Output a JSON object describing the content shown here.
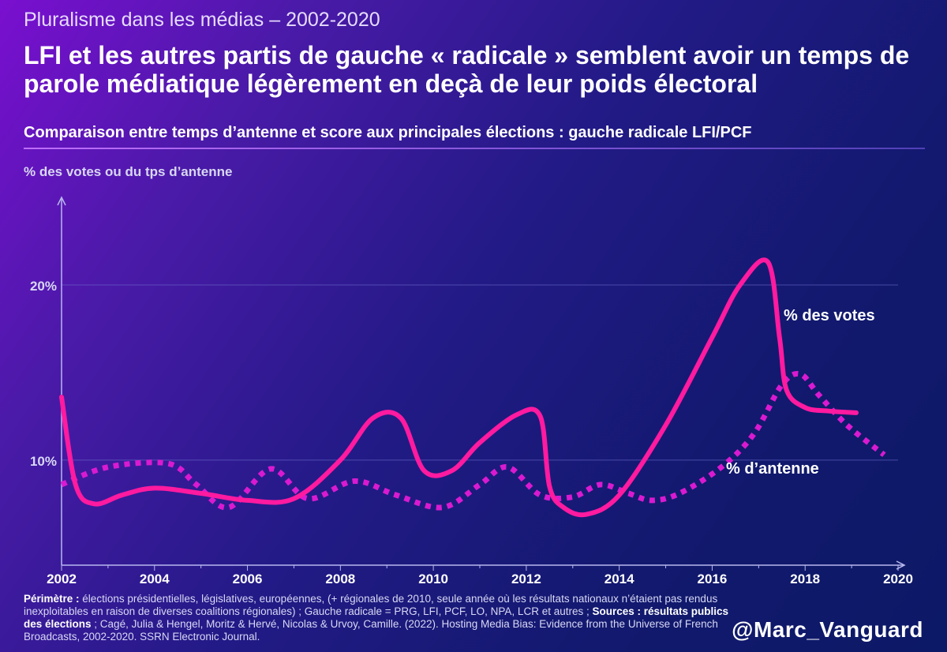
{
  "header": {
    "kicker": "Pluralisme dans les médias – 2002-2020",
    "headline": "LFI et les autres partis de gauche « radicale » semblent avoir un temps de parole médiatique légèrement en deçà de leur poids électoral",
    "subtitle": "Comparaison entre temps d’antenne et score aux principales élections : gauche radicale LFI/PCF"
  },
  "chart_data": {
    "type": "line",
    "ylabel": "% des votes ou du tps d’antenne",
    "xlim": [
      2002,
      2020
    ],
    "ylim": [
      4,
      25
    ],
    "grid": true,
    "x_ticks": [
      2002,
      2004,
      2006,
      2008,
      2010,
      2012,
      2014,
      2016,
      2018,
      2020
    ],
    "x_tick_labels": [
      "2002",
      "2004",
      "2006",
      "2008",
      "2010",
      "2012",
      "2014",
      "2016",
      "2018",
      "2020"
    ],
    "y_ticks": [
      10,
      20
    ],
    "y_tick_labels": [
      "10%",
      "20%"
    ],
    "series": [
      {
        "name": "% des votes",
        "label": "% des votes",
        "style": "solid",
        "color": "#ff1aa0",
        "points": [
          [
            2002.0,
            13.6
          ],
          [
            2002.3,
            8.6
          ],
          [
            2002.7,
            7.5
          ],
          [
            2003.3,
            8.0
          ],
          [
            2004.0,
            8.4
          ],
          [
            2005.0,
            8.1
          ],
          [
            2006.0,
            7.7
          ],
          [
            2007.0,
            7.8
          ],
          [
            2008.0,
            10.0
          ],
          [
            2008.7,
            12.4
          ],
          [
            2009.3,
            12.4
          ],
          [
            2009.8,
            9.4
          ],
          [
            2010.4,
            9.4
          ],
          [
            2011.0,
            11.0
          ],
          [
            2011.8,
            12.6
          ],
          [
            2012.3,
            12.5
          ],
          [
            2012.5,
            8.5
          ],
          [
            2012.8,
            7.3
          ],
          [
            2013.3,
            6.9
          ],
          [
            2014.0,
            8.0
          ],
          [
            2015.0,
            12.0
          ],
          [
            2016.0,
            17.0
          ],
          [
            2016.6,
            20.0
          ],
          [
            2017.2,
            21.3
          ],
          [
            2017.45,
            17.0
          ],
          [
            2017.6,
            14.0
          ],
          [
            2018.0,
            13.0
          ],
          [
            2018.5,
            12.8
          ],
          [
            2019.1,
            12.7
          ]
        ]
      },
      {
        "name": "% d’antenne",
        "label": "% d’antenne",
        "style": "dotted",
        "color": "#d91ad0",
        "points": [
          [
            2002.0,
            8.6
          ],
          [
            2003.0,
            9.6
          ],
          [
            2004.3,
            9.8
          ],
          [
            2004.9,
            8.6
          ],
          [
            2005.6,
            7.3
          ],
          [
            2006.5,
            9.5
          ],
          [
            2007.3,
            7.8
          ],
          [
            2008.3,
            8.8
          ],
          [
            2009.2,
            8.0
          ],
          [
            2010.2,
            7.3
          ],
          [
            2011.0,
            8.6
          ],
          [
            2011.6,
            9.6
          ],
          [
            2012.3,
            8.0
          ],
          [
            2013.0,
            7.9
          ],
          [
            2013.6,
            8.6
          ],
          [
            2014.2,
            8.1
          ],
          [
            2014.7,
            7.7
          ],
          [
            2015.3,
            8.1
          ],
          [
            2016.2,
            9.6
          ],
          [
            2016.9,
            11.5
          ],
          [
            2017.5,
            14.3
          ],
          [
            2017.9,
            14.9
          ],
          [
            2018.3,
            13.7
          ],
          [
            2018.9,
            12.0
          ],
          [
            2019.7,
            10.3
          ]
        ]
      }
    ]
  },
  "footnote": {
    "perimetre_label": "Périmètre :",
    "perimetre_text": " élections présidentielles, législatives, européennes, (+ régionales de 2010, seule année où les résultats nationaux n’étaient pas rendus inexploitables en raison de diverses coalitions régionales) ; Gauche radicale = PRG, LFI, PCF, LO, NPA, LCR et autres ; ",
    "sources_label": "Sources : résultats publics des élections",
    "sources_text": " ; Cagé, Julia & Hengel, Moritz & Hervé, Nicolas & Urvoy, Camille. (2022). Hosting Media Bias: Evidence from the Universe of French Broadcasts, 2002-2020. SSRN Electronic Journal."
  },
  "handle": "@Marc_Vanguard"
}
